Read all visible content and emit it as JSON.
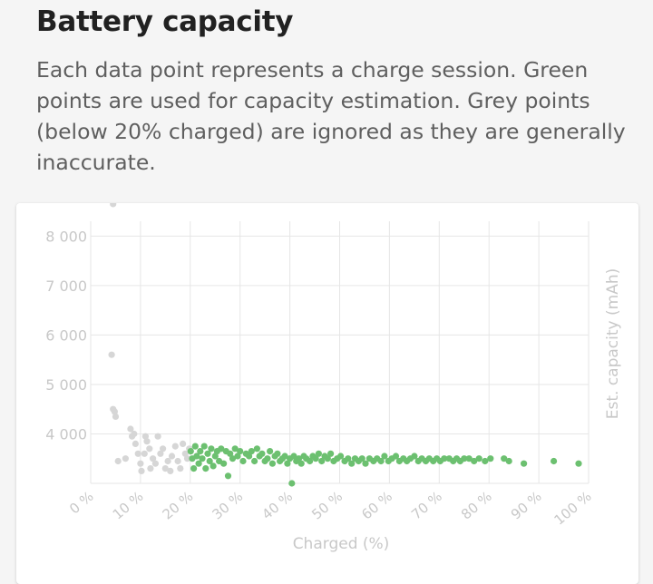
{
  "header": {
    "title": "Battery capacity",
    "description": "Each data point represents a charge session. Green points are used for capacity estimation. Grey points (below 20% charged) are ignored as they are generally inaccurate."
  },
  "colors": {
    "used_point": "#6cc070",
    "ignored_point": "#d6d6d6",
    "grid": "#e6e6e6",
    "axis_text": "#c8c8c8"
  },
  "chart_data": {
    "type": "scatter",
    "title": "",
    "xlabel": "Charged (%)",
    "ylabel": "Est. capacity (mAh)",
    "xlim": [
      0,
      100
    ],
    "ylim": [
      3000,
      8300
    ],
    "x_ticks": [
      "0 %",
      "10 %",
      "20 %",
      "30 %",
      "40 %",
      "50 %",
      "60 %",
      "70 %",
      "80 %",
      "90 %",
      "100 %"
    ],
    "y_ticks": [
      "4 000",
      "5 000",
      "6 000",
      "7 000",
      "8 000"
    ],
    "grid": true,
    "series": [
      {
        "color_role": "ignored",
        "points": [
          [
            4.5,
            8650
          ],
          [
            4.2,
            5600
          ],
          [
            4.5,
            4500
          ],
          [
            4.8,
            4450
          ],
          [
            5.0,
            4350
          ],
          [
            5.5,
            3450
          ],
          [
            7.0,
            3500
          ],
          [
            8.0,
            4100
          ],
          [
            8.3,
            3950
          ],
          [
            8.7,
            4000
          ],
          [
            9.0,
            3800
          ],
          [
            9.5,
            3600
          ],
          [
            10.0,
            3400
          ],
          [
            10.2,
            3250
          ],
          [
            10.8,
            3600
          ],
          [
            11.0,
            3950
          ],
          [
            11.3,
            3850
          ],
          [
            11.8,
            3700
          ],
          [
            12.0,
            3300
          ],
          [
            12.5,
            3500
          ],
          [
            13.0,
            3400
          ],
          [
            13.5,
            3950
          ],
          [
            14.0,
            3600
          ],
          [
            14.5,
            3700
          ],
          [
            15.0,
            3300
          ],
          [
            15.5,
            3450
          ],
          [
            16.0,
            3250
          ],
          [
            16.3,
            3550
          ],
          [
            17.0,
            3750
          ],
          [
            17.5,
            3450
          ],
          [
            18.0,
            3300
          ],
          [
            18.5,
            3800
          ],
          [
            19.0,
            3600
          ],
          [
            19.4,
            3500
          ],
          [
            19.8,
            3700
          ]
        ]
      },
      {
        "color_role": "used",
        "points": [
          [
            20.1,
            3650
          ],
          [
            20.4,
            3500
          ],
          [
            20.7,
            3300
          ],
          [
            21.0,
            3750
          ],
          [
            21.3,
            3550
          ],
          [
            21.7,
            3400
          ],
          [
            22.0,
            3650
          ],
          [
            22.4,
            3500
          ],
          [
            22.8,
            3750
          ],
          [
            23.1,
            3300
          ],
          [
            23.5,
            3600
          ],
          [
            23.9,
            3450
          ],
          [
            24.2,
            3700
          ],
          [
            24.6,
            3350
          ],
          [
            25.0,
            3550
          ],
          [
            25.4,
            3650
          ],
          [
            25.8,
            3450
          ],
          [
            26.2,
            3700
          ],
          [
            26.7,
            3400
          ],
          [
            27.2,
            3650
          ],
          [
            27.6,
            3150
          ],
          [
            28.0,
            3600
          ],
          [
            28.5,
            3500
          ],
          [
            29.0,
            3700
          ],
          [
            29.5,
            3550
          ],
          [
            30.0,
            3650
          ],
          [
            30.6,
            3450
          ],
          [
            31.2,
            3600
          ],
          [
            31.8,
            3550
          ],
          [
            32.3,
            3650
          ],
          [
            32.9,
            3450
          ],
          [
            33.4,
            3700
          ],
          [
            33.9,
            3550
          ],
          [
            34.4,
            3600
          ],
          [
            35.0,
            3450
          ],
          [
            35.5,
            3500
          ],
          [
            36.0,
            3650
          ],
          [
            36.5,
            3400
          ],
          [
            37.0,
            3550
          ],
          [
            37.5,
            3600
          ],
          [
            38.0,
            3450
          ],
          [
            38.5,
            3500
          ],
          [
            39.0,
            3550
          ],
          [
            39.5,
            3400
          ],
          [
            40.0,
            3500
          ],
          [
            40.4,
            3000
          ],
          [
            40.8,
            3550
          ],
          [
            41.3,
            3450
          ],
          [
            41.8,
            3500
          ],
          [
            42.3,
            3400
          ],
          [
            42.8,
            3550
          ],
          [
            43.3,
            3500
          ],
          [
            44.0,
            3450
          ],
          [
            44.6,
            3550
          ],
          [
            45.2,
            3500
          ],
          [
            45.8,
            3600
          ],
          [
            46.4,
            3450
          ],
          [
            47.0,
            3550
          ],
          [
            47.6,
            3500
          ],
          [
            48.2,
            3600
          ],
          [
            48.8,
            3450
          ],
          [
            49.5,
            3500
          ],
          [
            50.2,
            3550
          ],
          [
            51.0,
            3450
          ],
          [
            51.7,
            3500
          ],
          [
            52.4,
            3400
          ],
          [
            53.1,
            3500
          ],
          [
            53.8,
            3450
          ],
          [
            54.5,
            3500
          ],
          [
            55.2,
            3400
          ],
          [
            56.0,
            3500
          ],
          [
            56.8,
            3450
          ],
          [
            57.5,
            3500
          ],
          [
            58.3,
            3450
          ],
          [
            59.0,
            3550
          ],
          [
            59.8,
            3450
          ],
          [
            60.5,
            3500
          ],
          [
            61.3,
            3550
          ],
          [
            62.0,
            3450
          ],
          [
            62.8,
            3500
          ],
          [
            63.5,
            3450
          ],
          [
            64.2,
            3500
          ],
          [
            65.0,
            3550
          ],
          [
            65.8,
            3450
          ],
          [
            66.5,
            3500
          ],
          [
            67.3,
            3450
          ],
          [
            68.0,
            3500
          ],
          [
            68.8,
            3450
          ],
          [
            69.5,
            3500
          ],
          [
            70.2,
            3450
          ],
          [
            71.0,
            3500
          ],
          [
            72.0,
            3500
          ],
          [
            72.8,
            3450
          ],
          [
            73.5,
            3500
          ],
          [
            74.2,
            3450
          ],
          [
            75.0,
            3500
          ],
          [
            76.0,
            3500
          ],
          [
            77.0,
            3450
          ],
          [
            78.0,
            3500
          ],
          [
            79.2,
            3450
          ],
          [
            80.3,
            3500
          ],
          [
            83.0,
            3500
          ],
          [
            84.0,
            3450
          ],
          [
            87.0,
            3400
          ],
          [
            93.0,
            3450
          ],
          [
            98.0,
            3400
          ]
        ]
      }
    ]
  }
}
